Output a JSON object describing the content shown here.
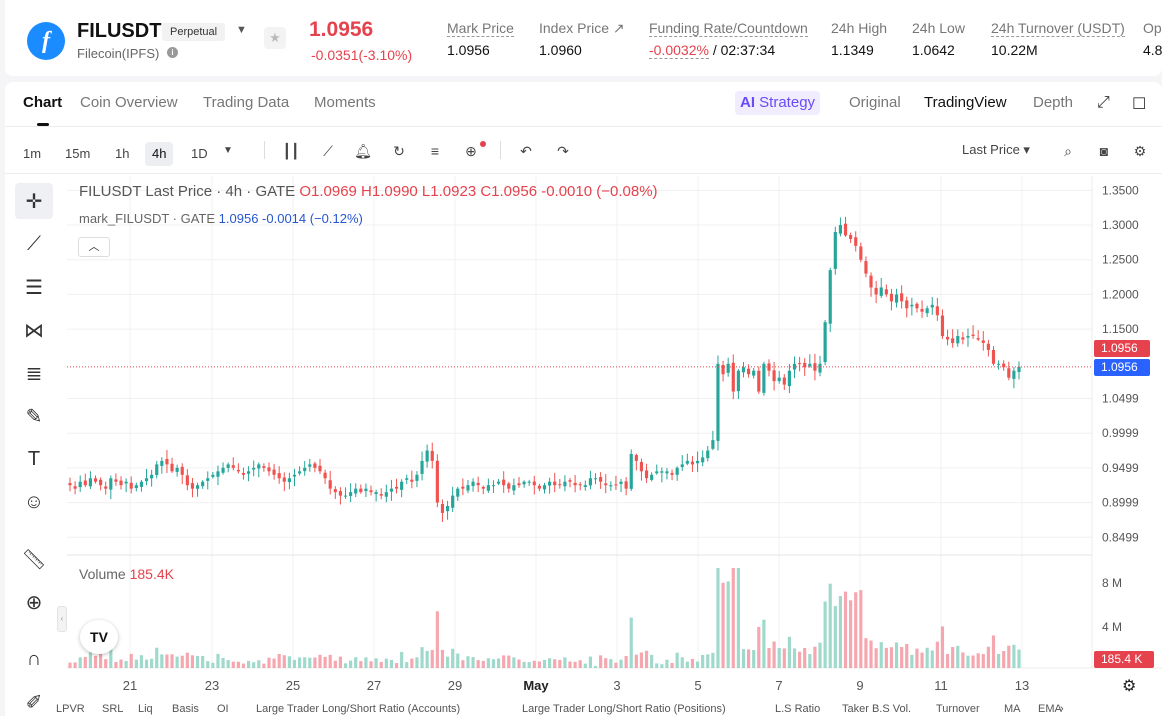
{
  "header": {
    "logo_glyph": "f",
    "symbol": "FILUSDT",
    "badge": "Perpetual",
    "name": "Filecoin(IPFS)",
    "last_price": "1.0956",
    "change": "-0.0351(-3.10%)",
    "stats": {
      "mark_label": "Mark Price",
      "mark_value": "1.0956",
      "index_label": "Index Price ↗",
      "index_value": "1.0960",
      "funding_label": "Funding Rate/Countdown",
      "funding_rate": "-0.0032%",
      "funding_countdown": "/ 02:37:34",
      "high_label": "24h High",
      "high_value": "1.1349",
      "low_label": "24h Low",
      "low_value": "1.0642",
      "turnover_label": "24h Turnover (USDT)",
      "turnover_value": "10.22M",
      "op_label": "Op",
      "op_value": "4.8"
    }
  },
  "tabs": {
    "chart": "Chart",
    "coin_overview": "Coin Overview",
    "trading_data": "Trading Data",
    "moments": "Moments",
    "strategy_icon": "AI",
    "strategy": "Strategy",
    "original": "Original",
    "tradingview": "TradingView",
    "depth": "Depth"
  },
  "toolbar": {
    "intervals": [
      "1m",
      "15m",
      "1h",
      "4h",
      "1D"
    ],
    "active_interval": "4h",
    "price_type": "Last Price ▾"
  },
  "legend": {
    "title": "FILUSDT Last Price · 4h · GATE",
    "ohlc": "O1.0969  H1.0990  L1.0923  C1.0956  -0.0010 (−0.08%)",
    "mark_title": "mark_FILUSDT · GATE",
    "mark_values": "1.0956  -0.0014 (−0.12%)",
    "volume_label": "Volume",
    "volume_value": "185.4K"
  },
  "price_tags": {
    "last": "1.0956",
    "mark": "1.0956",
    "volume": "185.4 K"
  },
  "colors": {
    "up": "#26a69a",
    "down": "#ef5350",
    "up_vol": "#9ed9cb",
    "down_vol": "#f5a6ae",
    "mark_tag": "#2962ff",
    "last_tag": "#e5424d"
  },
  "bottom_tabs": [
    "LPVR",
    "SRL",
    "Liq",
    "Basis",
    "OI",
    "Large Trader Long/Short Ratio (Accounts)",
    "Large Trader Long/Short Ratio (Positions)",
    "L.S Ratio",
    "Taker B.S Vol.",
    "Turnover",
    "MA",
    "EMA"
  ],
  "chart_data": {
    "type": "candlestick",
    "title": "FILUSDT Last Price · 4h · GATE",
    "x_ticks": [
      "21",
      "23",
      "25",
      "27",
      "29",
      "May",
      "3",
      "5",
      "7",
      "9",
      "11",
      "13"
    ],
    "y_ticks": [
      1.35,
      1.3,
      1.25,
      1.2,
      1.15,
      1.0499,
      0.9999,
      0.9499,
      0.8999,
      0.8499
    ],
    "ylim": [
      0.835,
      1.36
    ],
    "volume_ticks": [
      "8 M",
      "4 M"
    ],
    "close_path": [
      0.925,
      0.92,
      0.93,
      0.925,
      0.935,
      0.93,
      0.925,
      0.92,
      0.935,
      0.93,
      0.925,
      0.93,
      0.92,
      0.925,
      0.93,
      0.935,
      0.94,
      0.955,
      0.96,
      0.955,
      0.945,
      0.95,
      0.94,
      0.925,
      0.92,
      0.925,
      0.93,
      0.935,
      0.94,
      0.945,
      0.95,
      0.955,
      0.95,
      0.945,
      0.94,
      0.945,
      0.95,
      0.955,
      0.95,
      0.945,
      0.94,
      0.935,
      0.93,
      0.935,
      0.94,
      0.945,
      0.95,
      0.955,
      0.95,
      0.945,
      0.935,
      0.92,
      0.915,
      0.91,
      0.91,
      0.915,
      0.92,
      0.915,
      0.92,
      0.915,
      0.915,
      0.91,
      0.915,
      0.92,
      0.92,
      0.93,
      0.935,
      0.93,
      0.94,
      0.96,
      0.975,
      0.96,
      0.9,
      0.885,
      0.895,
      0.91,
      0.92,
      0.92,
      0.925,
      0.93,
      0.925,
      0.92,
      0.925,
      0.925,
      0.93,
      0.925,
      0.92,
      0.925,
      0.925,
      0.93,
      0.93,
      0.925,
      0.92,
      0.925,
      0.93,
      0.925,
      0.925,
      0.93,
      0.93,
      0.925,
      0.925,
      0.925,
      0.935,
      0.935,
      0.93,
      0.925,
      0.925,
      0.925,
      0.93,
      0.92,
      0.97,
      0.96,
      0.945,
      0.935,
      0.94,
      0.945,
      0.945,
      0.945,
      0.94,
      0.95,
      0.955,
      0.96,
      0.955,
      0.96,
      0.965,
      0.975,
      0.99,
      1.1,
      1.085,
      1.1,
      1.06,
      1.09,
      1.095,
      1.085,
      1.09,
      1.06,
      1.1,
      1.09,
      1.075,
      1.08,
      1.07,
      1.09,
      1.1,
      1.1,
      1.095,
      1.1,
      1.09,
      1.1,
      1.16,
      1.235,
      1.29,
      1.3,
      1.285,
      1.28,
      1.27,
      1.25,
      1.23,
      1.21,
      1.2,
      1.21,
      1.2,
      1.19,
      1.2,
      1.19,
      1.18,
      1.185,
      1.18,
      1.175,
      1.18,
      1.185,
      1.17,
      1.14,
      1.135,
      1.13,
      1.14,
      1.135,
      1.14,
      1.14,
      1.135,
      1.13,
      1.12,
      1.1,
      1.1,
      1.095,
      1.08,
      1.09,
      1.0956
    ]
  }
}
